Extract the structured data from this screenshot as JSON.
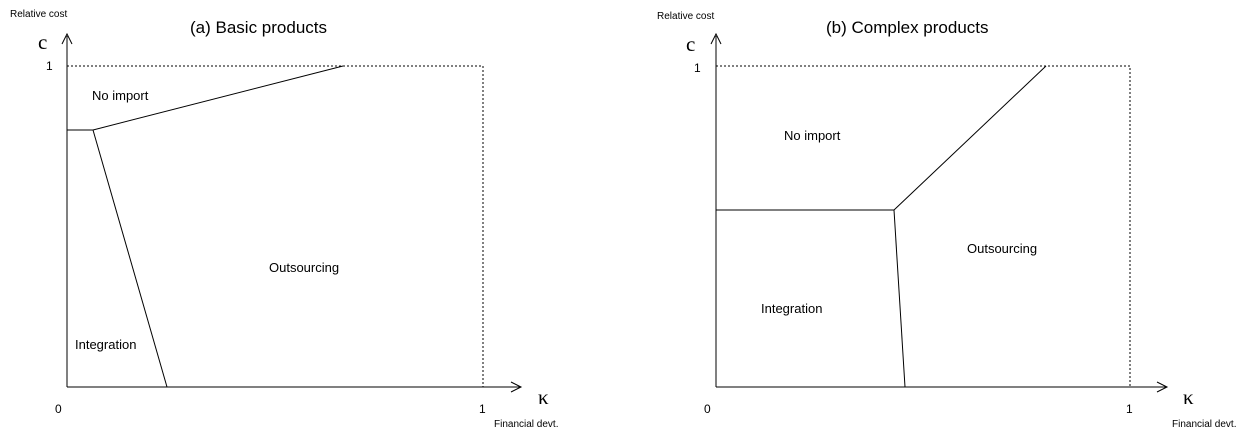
{
  "panels": [
    {
      "title": "(a) Basic products",
      "y_axis_label": "Relative cost",
      "y_symbol": "c",
      "x_symbol": "κ",
      "x_axis_label": "Financial devt.",
      "origin_label": "0",
      "x_max_label": "1",
      "y_max_label": "1",
      "regions": {
        "no_import": "No import",
        "integration": "Integration",
        "outsourcing": "Outsourcing"
      }
    },
    {
      "title": "(b) Complex products",
      "y_axis_label": "Relative cost",
      "y_symbol": "c",
      "x_symbol": "κ",
      "x_axis_label": "Financial devt.",
      "origin_label": "0",
      "x_max_label": "1",
      "y_max_label": "1",
      "regions": {
        "no_import": "No import",
        "integration": "Integration",
        "outsourcing": "Outsourcing"
      }
    }
  ]
}
